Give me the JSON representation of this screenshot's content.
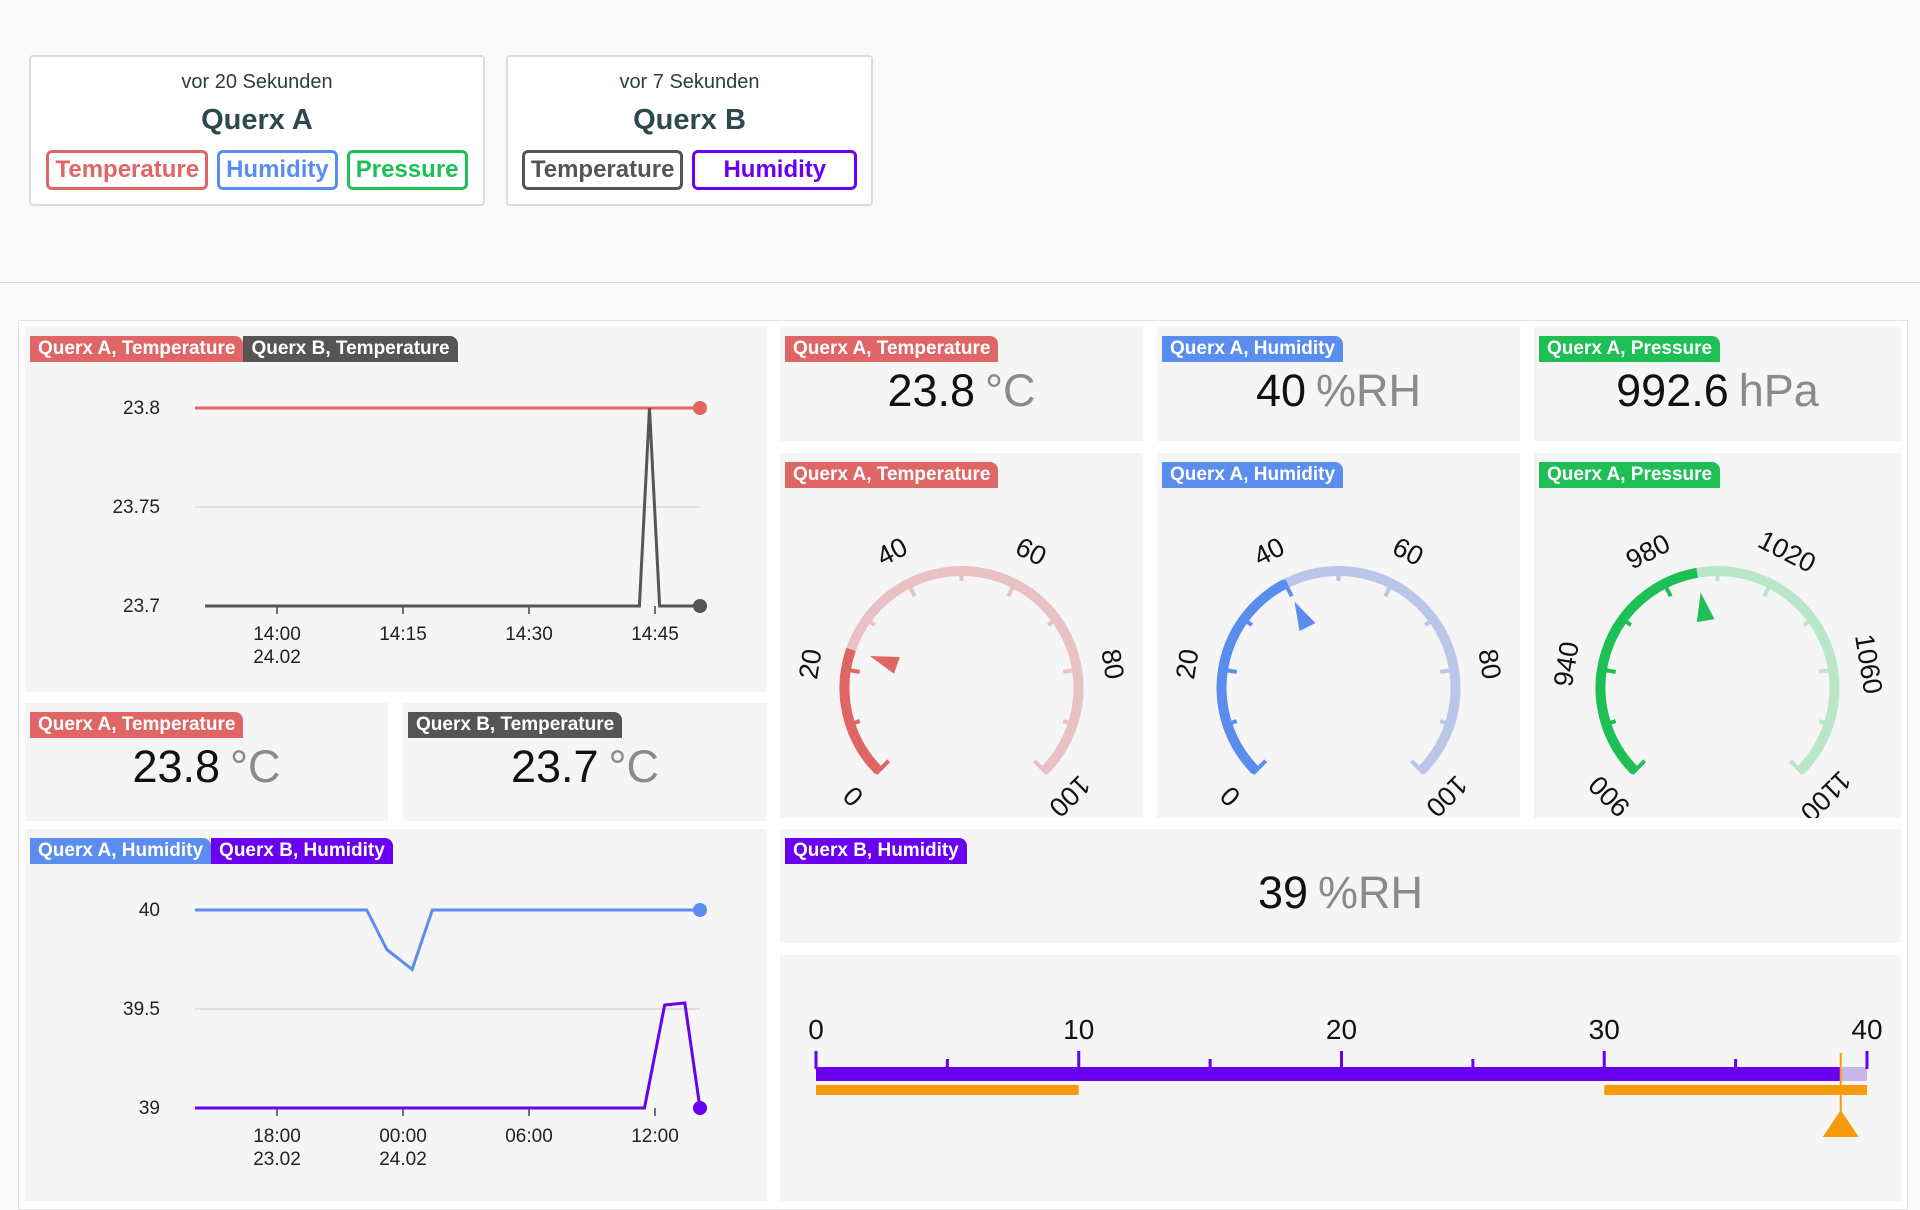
{
  "devices": [
    {
      "ago": "vor 20 Sekunden",
      "name": "Querx A",
      "sensors": [
        {
          "label": "Temperature",
          "color": "#e06666",
          "filled": false
        },
        {
          "label": "Humidity",
          "color": "#5b8def",
          "filled": false
        },
        {
          "label": "Pressure",
          "color": "#1ec055",
          "filled": false
        }
      ]
    },
    {
      "ago": "vor 7 Sekunden",
      "name": "Querx B",
      "sensors": [
        {
          "label": "Temperature",
          "color": "#555555",
          "filled": false
        },
        {
          "label": "Humidity",
          "color": "#6a00f0",
          "filled": false
        }
      ]
    }
  ],
  "colors": {
    "tempA": "#e06666",
    "humA": "#5b8def",
    "presA": "#1ec055",
    "tempB": "#555555",
    "humB": "#6a00f0",
    "orange": "#f59b0c"
  },
  "tags": {
    "tempA": "Querx A, Temperature",
    "tempB": "Querx B, Temperature",
    "humA": "Querx A, Humidity",
    "humB": "Querx B, Humidity",
    "presA": "Querx A, Pressure"
  },
  "values": {
    "tempA": {
      "value": "23.8",
      "unit": "°C"
    },
    "tempB": {
      "value": "23.7",
      "unit": "°C"
    },
    "humA": {
      "value": "40",
      "unit": "%RH"
    },
    "humB": {
      "value": "39",
      "unit": "%RH"
    },
    "presA": {
      "value": "992.6",
      "unit": "hPa"
    }
  },
  "chart_data": [
    {
      "type": "line",
      "title": "Querx A, Temperature / Querx B, Temperature",
      "ylim": [
        23.7,
        23.8
      ],
      "yticks": [
        "23.8",
        "23.75",
        "23.7"
      ],
      "xticks": [
        {
          "l1": "14:00",
          "l2": "24.02"
        },
        {
          "l1": "14:15",
          "l2": ""
        },
        {
          "l1": "14:30",
          "l2": ""
        },
        {
          "l1": "14:45",
          "l2": ""
        }
      ],
      "series": [
        {
          "name": "Querx A, Temperature",
          "color": "#e06666",
          "points": [
            [
              0,
              23.8
            ],
            [
              1,
              23.8
            ]
          ]
        },
        {
          "name": "Querx B, Temperature",
          "color": "#555555",
          "points": [
            [
              0.02,
              23.7
            ],
            [
              0.88,
              23.7
            ],
            [
              0.9,
              23.8
            ],
            [
              0.92,
              23.7
            ],
            [
              1,
              23.7
            ]
          ]
        }
      ]
    },
    {
      "type": "line",
      "title": "Querx A, Humidity / Querx B, Humidity",
      "ylim": [
        39,
        40
      ],
      "yticks": [
        "40",
        "39.5",
        "39"
      ],
      "xticks": [
        {
          "l1": "18:00",
          "l2": "23.02"
        },
        {
          "l1": "00:00",
          "l2": "24.02"
        },
        {
          "l1": "06:00",
          "l2": ""
        },
        {
          "l1": "12:00",
          "l2": ""
        }
      ],
      "series": [
        {
          "name": "Querx A, Humidity",
          "color": "#5b8def",
          "points": [
            [
              0,
              40
            ],
            [
              0.34,
              40
            ],
            [
              0.38,
              39.8
            ],
            [
              0.43,
              39.7
            ],
            [
              0.47,
              40
            ],
            [
              1,
              40
            ]
          ]
        },
        {
          "name": "Querx B, Humidity",
          "color": "#6a00f0",
          "points": [
            [
              0,
              39
            ],
            [
              0.89,
              39
            ],
            [
              0.93,
              39.52
            ],
            [
              0.97,
              39.53
            ],
            [
              1,
              39
            ]
          ]
        }
      ]
    },
    {
      "type": "gauge",
      "title": "Querx A, Temperature",
      "min": 0,
      "max": 100,
      "value": 23.8,
      "ticks": [
        "0",
        "20",
        "40",
        "60",
        "80",
        "100"
      ]
    },
    {
      "type": "gauge",
      "title": "Querx A, Humidity",
      "min": 0,
      "max": 100,
      "value": 40,
      "ticks": [
        "0",
        "20",
        "40",
        "60",
        "80",
        "100"
      ]
    },
    {
      "type": "gauge",
      "title": "Querx A, Pressure",
      "min": 900,
      "max": 1100,
      "value": 992.6,
      "ticks": [
        "900",
        "940",
        "980",
        "1020",
        "1060",
        "1100"
      ]
    },
    {
      "type": "bar",
      "title": "Querx B, Humidity",
      "min": 0,
      "max": 40,
      "value": 39,
      "ticks": [
        "0",
        "10",
        "20",
        "30",
        "40"
      ],
      "ranges": [
        [
          0,
          10
        ],
        [
          30,
          40
        ]
      ]
    }
  ]
}
